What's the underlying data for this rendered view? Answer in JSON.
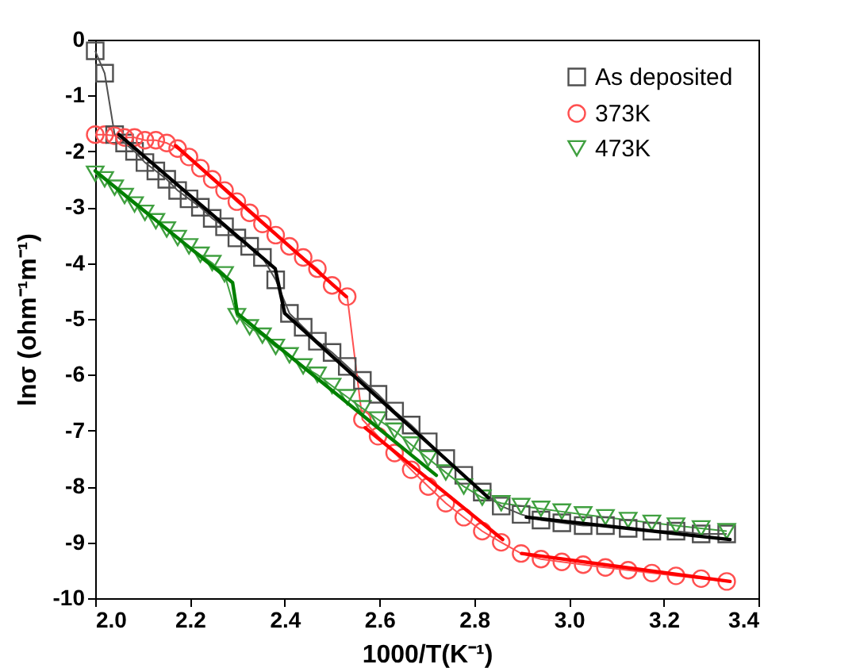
{
  "chart_data": {
    "type": "line",
    "xlabel": "1000/T(K⁻¹)",
    "ylabel": "lnσ (ohm⁻¹m⁻¹)",
    "xlim": [
      2.0,
      3.4
    ],
    "ylim": [
      -10,
      0
    ],
    "xticks": [
      {
        "value": 2.0,
        "label": "2.0"
      },
      {
        "value": 2.2,
        "label": "2.2"
      },
      {
        "value": 2.4,
        "label": "2.4"
      },
      {
        "value": 2.6,
        "label": "2.6"
      },
      {
        "value": 2.8,
        "label": "2.8"
      },
      {
        "value": 3.0,
        "label": "3.0"
      },
      {
        "value": 3.2,
        "label": "3.2"
      },
      {
        "value": 3.4,
        "label": "3.4"
      }
    ],
    "yticks": [
      0,
      -1,
      -2,
      -3,
      -4,
      -5,
      -6,
      -7,
      -8,
      -9,
      -10
    ],
    "grid": false,
    "legend": "top right",
    "x": [
      2.0,
      2.02,
      2.041,
      2.062,
      2.083,
      2.105,
      2.128,
      2.151,
      2.174,
      2.198,
      2.222,
      2.247,
      2.273,
      2.299,
      2.326,
      2.353,
      2.381,
      2.41,
      2.439,
      2.469,
      2.5,
      2.532,
      2.564,
      2.597,
      2.632,
      2.667,
      2.703,
      2.74,
      2.778,
      2.817,
      2.857,
      2.899,
      2.941,
      2.985,
      3.03,
      3.077,
      3.125,
      3.175,
      3.226,
      3.279,
      3.333
    ],
    "series": [
      {
        "name": "As deposited",
        "color": "#505050",
        "marker": "square",
        "values": [
          -0.2,
          -0.6,
          -1.7,
          -1.85,
          -2.0,
          -2.2,
          -2.35,
          -2.5,
          -2.7,
          -2.85,
          -3.0,
          -3.2,
          -3.35,
          -3.55,
          -3.7,
          -3.9,
          -4.3,
          -4.9,
          -5.15,
          -5.4,
          -5.6,
          -5.85,
          -6.1,
          -6.35,
          -6.65,
          -6.9,
          -7.2,
          -7.5,
          -7.8,
          -8.1,
          -8.35,
          -8.5,
          -8.6,
          -8.65,
          -8.7,
          -8.7,
          -8.75,
          -8.8,
          -8.8,
          -8.85,
          -8.85
        ]
      },
      {
        "name": "373K",
        "color": "#ff5050",
        "marker": "circle",
        "values": [
          -1.7,
          -1.7,
          -1.72,
          -1.75,
          -1.75,
          -1.8,
          -1.8,
          -1.85,
          -1.95,
          -2.1,
          -2.3,
          -2.5,
          -2.7,
          -2.9,
          -3.1,
          -3.3,
          -3.5,
          -3.7,
          -3.9,
          -4.1,
          -4.4,
          -4.6,
          -6.8,
          -7.1,
          -7.4,
          -7.7,
          -8.0,
          -8.3,
          -8.55,
          -8.8,
          -9.0,
          -9.2,
          -9.3,
          -9.35,
          -9.4,
          -9.45,
          -9.5,
          -9.55,
          -9.6,
          -9.65,
          -9.7
        ]
      },
      {
        "name": "473K",
        "color": "#40a040",
        "marker": "triangle",
        "values": [
          -2.4,
          -2.5,
          -2.65,
          -2.8,
          -2.95,
          -3.1,
          -3.25,
          -3.4,
          -3.55,
          -3.7,
          -3.85,
          -4.0,
          -4.2,
          -4.95,
          -5.15,
          -5.3,
          -5.5,
          -5.65,
          -5.85,
          -6.0,
          -6.2,
          -6.4,
          -6.6,
          -6.8,
          -7.0,
          -7.25,
          -7.5,
          -7.75,
          -8.0,
          -8.2,
          -8.3,
          -8.35,
          -8.4,
          -8.45,
          -8.5,
          -8.55,
          -8.6,
          -8.65,
          -8.7,
          -8.75,
          -8.8
        ]
      },
      {
        "color": "#000000",
        "marker": "none",
        "x": [
          2.05,
          2.38,
          2.4,
          2.83
        ],
        "values": [
          -1.7,
          -4.1,
          -4.9,
          -8.2
        ]
      },
      {
        "color": "#000000",
        "marker": "none",
        "x": [
          2.91,
          3.34
        ],
        "values": [
          -8.55,
          -8.95
        ]
      },
      {
        "color": "#ff0000",
        "marker": "none",
        "x": [
          2.17,
          2.53
        ],
        "values": [
          -1.9,
          -4.6
        ]
      },
      {
        "color": "#ff0000",
        "marker": "none",
        "x": [
          2.57,
          2.86
        ],
        "values": [
          -6.95,
          -8.95
        ]
      },
      {
        "color": "#ff0000",
        "marker": "none",
        "x": [
          2.9,
          3.34
        ],
        "values": [
          -9.2,
          -9.7
        ]
      },
      {
        "color": "#008000",
        "marker": "none",
        "x": [
          2.0,
          2.29,
          2.3,
          2.72
        ],
        "values": [
          -2.35,
          -4.35,
          -4.9,
          -7.8
        ]
      }
    ]
  }
}
